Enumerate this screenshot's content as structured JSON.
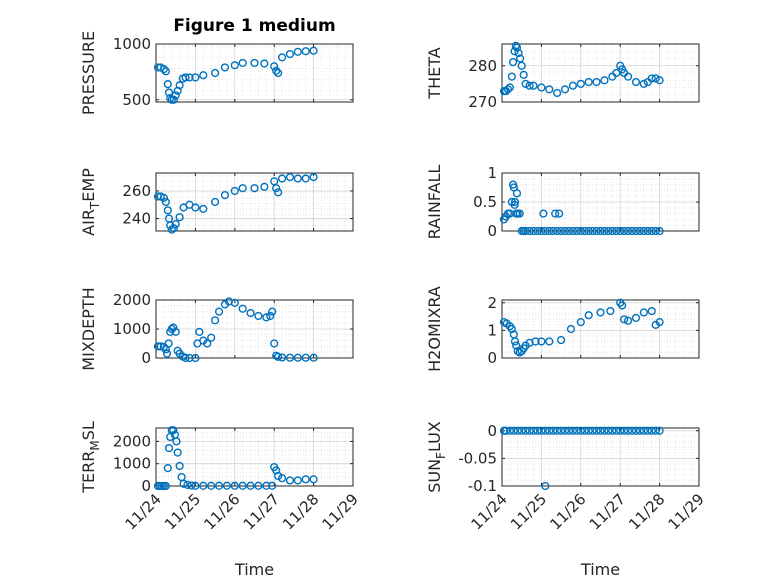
{
  "figure": {
    "title": "Figure 1 medium"
  },
  "colors": {
    "marker": "#0072BD",
    "grid": "#dfdfdf",
    "axis": "#262626",
    "background": "#ffffff"
  },
  "chart_data": [
    {
      "type": "scatter",
      "title": "Figure 1 medium",
      "ylabel": "PRESSURE",
      "xlabel": "",
      "ylim": [
        480,
        1000
      ],
      "yticks": [
        500,
        1000
      ],
      "ytick_labels": [
        "500",
        "1000"
      ],
      "xlim": [
        0,
        5
      ],
      "xticks": [
        0,
        1,
        2,
        3,
        4,
        5
      ],
      "xtick_labels": [],
      "grid": true,
      "series": [
        {
          "x": [
            0.05,
            0.12,
            0.2,
            0.25,
            0.3,
            0.33,
            0.36,
            0.4,
            0.45,
            0.5,
            0.55,
            0.6,
            0.68,
            0.75,
            0.85,
            1,
            1.2,
            1.5,
            1.75,
            2,
            2.2,
            2.5,
            2.75,
            3,
            3.05,
            3.1,
            3.2,
            3.4,
            3.6,
            3.8,
            4
          ],
          "y": [
            790,
            790,
            775,
            755,
            640,
            565,
            515,
            500,
            500,
            540,
            580,
            630,
            690,
            700,
            700,
            700,
            720,
            740,
            790,
            810,
            830,
            830,
            825,
            800,
            760,
            740,
            880,
            910,
            930,
            935,
            940
          ]
        }
      ]
    },
    {
      "type": "scatter",
      "title": "",
      "ylabel": "THETA",
      "xlabel": "",
      "ylim": [
        270,
        286
      ],
      "yticks": [
        270,
        280
      ],
      "ytick_labels": [
        "270",
        "280"
      ],
      "xlim": [
        0,
        5
      ],
      "xticks": [
        0,
        1,
        2,
        3,
        4,
        5
      ],
      "xtick_labels": [],
      "grid": true,
      "series": [
        {
          "x": [
            0.05,
            0.1,
            0.15,
            0.2,
            0.25,
            0.28,
            0.32,
            0.35,
            0.38,
            0.42,
            0.46,
            0.5,
            0.55,
            0.6,
            0.7,
            0.8,
            1,
            1.2,
            1.4,
            1.6,
            1.8,
            2,
            2.2,
            2.4,
            2.6,
            2.8,
            2.9,
            3,
            3.05,
            3.1,
            3.2,
            3.4,
            3.6,
            3.7,
            3.8,
            3.9,
            4
          ],
          "y": [
            273,
            273,
            273.5,
            274,
            277,
            281,
            284,
            285.5,
            285,
            283.5,
            282,
            280,
            277.5,
            275,
            274.5,
            274.5,
            274,
            273.5,
            272.5,
            273.5,
            274.5,
            275,
            275.5,
            275.5,
            276,
            277,
            278,
            280,
            279,
            278,
            277,
            275.5,
            275,
            275.5,
            276.5,
            276.5,
            276
          ]
        }
      ]
    },
    {
      "type": "scatter",
      "title": "",
      "ylabel": "AIR_TEMP",
      "xlabel": "",
      "ylim": [
        231,
        273
      ],
      "yticks": [
        240,
        260
      ],
      "ytick_labels": [
        "240",
        "260"
      ],
      "xlim": [
        0,
        5
      ],
      "xticks": [
        0,
        1,
        2,
        3,
        4,
        5
      ],
      "xtick_labels": [],
      "grid": true,
      "series": [
        {
          "x": [
            0.05,
            0.12,
            0.2,
            0.25,
            0.3,
            0.33,
            0.36,
            0.4,
            0.45,
            0.5,
            0.6,
            0.7,
            0.85,
            1,
            1.2,
            1.5,
            1.75,
            2,
            2.2,
            2.5,
            2.75,
            3,
            3.05,
            3.1,
            3.2,
            3.4,
            3.6,
            3.8,
            4
          ],
          "y": [
            256,
            256,
            255,
            252,
            246,
            240,
            235,
            232,
            233,
            236,
            241,
            248,
            250,
            248,
            247,
            252,
            257,
            260,
            262,
            262,
            263,
            267,
            262,
            259,
            269,
            270,
            269,
            269,
            270
          ]
        }
      ]
    },
    {
      "type": "scatter",
      "title": "",
      "ylabel": "RAINFALL",
      "xlabel": "",
      "ylim": [
        0,
        1
      ],
      "yticks": [
        0,
        0.5,
        1
      ],
      "ytick_labels": [
        "0",
        "0.5",
        "1"
      ],
      "xlim": [
        0,
        5
      ],
      "xticks": [
        0,
        1,
        2,
        3,
        4,
        5
      ],
      "xtick_labels": [],
      "grid": true,
      "series": [
        {
          "x": [
            0.05,
            0.1,
            0.15,
            0.2,
            0.25,
            0.28,
            0.3,
            0.33,
            0.36,
            0.4,
            0.45,
            0.5,
            0.55,
            0.6,
            0.7,
            0.8,
            0.9,
            1,
            1.1,
            1.2,
            1.3,
            1.4,
            1.5,
            1.6,
            1.7,
            1.8,
            1.9,
            2,
            2.1,
            2.2,
            2.3,
            2.4,
            2.5,
            2.6,
            2.7,
            2.8,
            2.9,
            3,
            3.1,
            3.2,
            3.3,
            3.4,
            3.5,
            3.6,
            3.7,
            3.8,
            3.9,
            4,
            1.05,
            1.35,
            1.45,
            0.32,
            0.38
          ],
          "y": [
            0.2,
            0.25,
            0.3,
            0.3,
            0.5,
            0.8,
            0.75,
            0.5,
            0.3,
            0.3,
            0.3,
            0,
            0,
            0,
            0,
            0,
            0,
            0,
            0,
            0,
            0,
            0,
            0,
            0,
            0,
            0,
            0,
            0,
            0,
            0,
            0,
            0,
            0,
            0,
            0,
            0,
            0,
            0,
            0,
            0,
            0,
            0,
            0,
            0,
            0,
            0,
            0,
            0,
            0.3,
            0.3,
            0.3,
            0.45,
            0.65
          ]
        }
      ]
    },
    {
      "type": "scatter",
      "title": "",
      "ylabel": "MIXDEPTH",
      "xlabel": "",
      "ylim": [
        0,
        2000
      ],
      "yticks": [
        0,
        1000,
        2000
      ],
      "ytick_labels": [
        "0",
        "1000",
        "2000"
      ],
      "xlim": [
        0,
        5
      ],
      "xticks": [
        0,
        1,
        2,
        3,
        4,
        5
      ],
      "xtick_labels": [],
      "grid": true,
      "series": [
        {
          "x": [
            0.05,
            0.12,
            0.2,
            0.25,
            0.28,
            0.32,
            0.36,
            0.4,
            0.44,
            0.5,
            0.55,
            0.6,
            0.68,
            0.75,
            0.85,
            1,
            1.05,
            1.1,
            1.2,
            1.3,
            1.4,
            1.5,
            1.6,
            1.75,
            1.85,
            2,
            2.2,
            2.4,
            2.6,
            2.8,
            2.9,
            2.95,
            3,
            3.05,
            3.1,
            3.2,
            3.4,
            3.6,
            3.8,
            4
          ],
          "y": [
            400,
            400,
            380,
            300,
            150,
            500,
            900,
            1000,
            1050,
            900,
            250,
            150,
            50,
            0,
            0,
            0,
            500,
            900,
            600,
            500,
            700,
            1300,
            1600,
            1850,
            1950,
            1900,
            1700,
            1550,
            1450,
            1400,
            1450,
            1600,
            500,
            80,
            40,
            20,
            10,
            10,
            10,
            10
          ]
        }
      ]
    },
    {
      "type": "scatter",
      "title": "",
      "ylabel": "H2OMIXRA",
      "xlabel": "",
      "ylim": [
        0,
        2.1
      ],
      "yticks": [
        0,
        1,
        2
      ],
      "ytick_labels": [
        "0",
        "1",
        "2"
      ],
      "xlim": [
        0,
        5
      ],
      "xticks": [
        0,
        1,
        2,
        3,
        4,
        5
      ],
      "xtick_labels": [],
      "grid": true,
      "series": [
        {
          "x": [
            0.05,
            0.12,
            0.2,
            0.25,
            0.3,
            0.33,
            0.36,
            0.4,
            0.45,
            0.5,
            0.55,
            0.6,
            0.7,
            0.85,
            1,
            1.2,
            1.5,
            1.75,
            2,
            2.2,
            2.5,
            2.75,
            3,
            3.05,
            3.1,
            3.2,
            3.4,
            3.6,
            3.8,
            3.9,
            4
          ],
          "y": [
            1.3,
            1.25,
            1.15,
            1.05,
            0.85,
            0.6,
            0.45,
            0.25,
            0.2,
            0.25,
            0.35,
            0.45,
            0.55,
            0.6,
            0.6,
            0.6,
            0.65,
            1.05,
            1.3,
            1.55,
            1.65,
            1.7,
            2.0,
            1.9,
            1.4,
            1.35,
            1.45,
            1.65,
            1.7,
            1.2,
            1.3
          ]
        }
      ]
    },
    {
      "type": "scatter",
      "title": "",
      "ylabel": "TERR_MSL",
      "xlabel": "Time",
      "ylim": [
        0,
        2600
      ],
      "yticks": [
        0,
        1000,
        2000
      ],
      "ytick_labels": [
        "0",
        "1000",
        "2000"
      ],
      "xlim": [
        0,
        5
      ],
      "xticks": [
        0,
        1,
        2,
        3,
        4,
        5
      ],
      "xtick_labels": [
        "11/24",
        "11/25",
        "11/26",
        "11/27",
        "11/28",
        "11/29"
      ],
      "grid": true,
      "series": [
        {
          "x": [
            0.05,
            0.1,
            0.15,
            0.2,
            0.25,
            0.3,
            0.33,
            0.36,
            0.4,
            0.44,
            0.48,
            0.52,
            0.55,
            0.6,
            0.65,
            0.7,
            0.8,
            0.9,
            1,
            1.2,
            1.4,
            1.6,
            1.8,
            2,
            2.2,
            2.4,
            2.6,
            2.8,
            2.95,
            3,
            3.05,
            3.1,
            3.2,
            3.4,
            3.6,
            3.8,
            4
          ],
          "y": [
            0,
            0,
            0,
            0,
            0,
            800,
            1700,
            2200,
            2500,
            2500,
            2300,
            2000,
            1500,
            900,
            400,
            100,
            50,
            20,
            10,
            10,
            10,
            10,
            10,
            10,
            10,
            10,
            10,
            10,
            10,
            850,
            700,
            450,
            350,
            250,
            250,
            300,
            300
          ]
        }
      ]
    },
    {
      "type": "scatter",
      "title": "",
      "ylabel": "SUN_FLUX",
      "xlabel": "Time",
      "ylim": [
        -0.1,
        0.005
      ],
      "yticks": [
        -0.1,
        -0.05,
        0
      ],
      "ytick_labels": [
        "-0.1",
        "-0.05",
        "0"
      ],
      "xlim": [
        0,
        5
      ],
      "xticks": [
        0,
        1,
        2,
        3,
        4,
        5
      ],
      "xtick_labels": [
        "11/24",
        "11/25",
        "11/26",
        "11/27",
        "11/28",
        "11/29"
      ],
      "grid": true,
      "series": [
        {
          "x": [
            0.05,
            0.1,
            0.2,
            0.3,
            0.4,
            0.5,
            0.6,
            0.7,
            0.8,
            0.9,
            1,
            1.1,
            1.2,
            1.3,
            1.4,
            1.5,
            1.6,
            1.7,
            1.8,
            1.9,
            2,
            2.1,
            2.2,
            2.3,
            2.4,
            2.5,
            2.6,
            2.7,
            2.8,
            2.9,
            3,
            3.1,
            3.2,
            3.3,
            3.4,
            3.5,
            3.6,
            3.7,
            3.8,
            3.9,
            4,
            1.1
          ],
          "y": [
            0,
            0,
            0,
            0,
            0,
            0,
            0,
            0,
            0,
            0,
            0,
            0,
            0,
            0,
            0,
            0,
            0,
            0,
            0,
            0,
            0,
            0,
            0,
            0,
            0,
            0,
            0,
            0,
            0,
            0,
            0,
            0,
            0,
            0,
            0,
            0,
            0,
            0,
            0,
            0,
            0,
            -0.1
          ]
        }
      ]
    }
  ]
}
